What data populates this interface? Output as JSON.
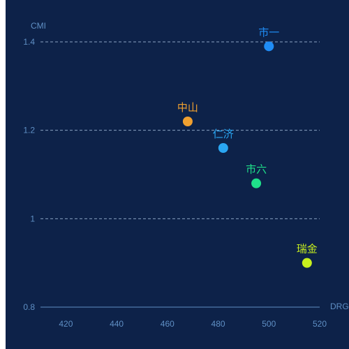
{
  "chart_data": {
    "type": "scatter",
    "xlabel": "DRGs",
    "ylabel": "CMI",
    "xlim": [
      410,
      520
    ],
    "ylim": [
      0.8,
      1.4
    ],
    "x_ticks": [
      "420",
      "440",
      "460",
      "480",
      "500",
      "520"
    ],
    "y_ticks": [
      "0.8",
      "1",
      "1.2",
      "1.4"
    ],
    "y_tick_values": [
      0.8,
      1.0,
      1.2,
      1.4
    ],
    "x_tick_values": [
      420,
      440,
      460,
      480,
      500,
      520
    ],
    "grid": "horizontal dashed",
    "points": [
      {
        "name": "市一",
        "x": 500,
        "y": 1.39,
        "color": "#1f8cf5"
      },
      {
        "name": "中山",
        "x": 468,
        "y": 1.22,
        "color": "#f0a030"
      },
      {
        "name": "仁济",
        "x": 482,
        "y": 1.16,
        "color": "#2aa6f2"
      },
      {
        "name": "市六",
        "x": 495,
        "y": 1.08,
        "color": "#1fe08a"
      },
      {
        "name": "瑞金",
        "x": 515,
        "y": 0.9,
        "color": "#c8f01e"
      }
    ]
  },
  "colors": {
    "background": "#0d2249",
    "axis": "#5f8fc4",
    "grid": "#8aa3c2"
  }
}
